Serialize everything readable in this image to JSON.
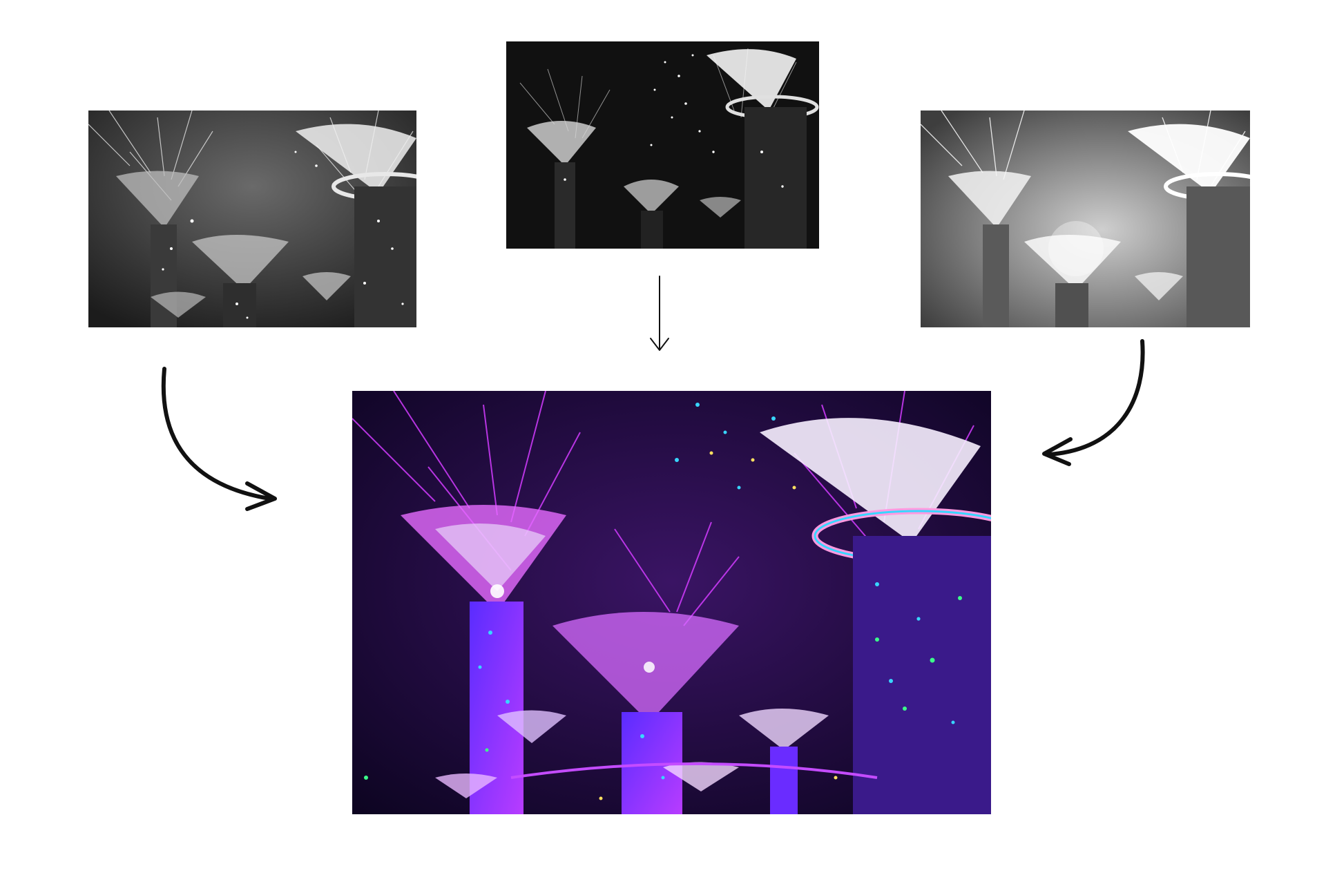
{
  "diagram": {
    "kind": "image-fusion",
    "inputs": [
      {
        "name": "input-left",
        "style": "grayscale",
        "tone": "medium"
      },
      {
        "name": "input-center",
        "style": "grayscale",
        "tone": "dark"
      },
      {
        "name": "input-right",
        "style": "grayscale",
        "tone": "bright"
      }
    ],
    "output": {
      "name": "fused-output",
      "style": "color"
    },
    "colors": {
      "arrow": "#111111",
      "sky_gray": "#2a2a2a",
      "sky_color": "#1a0a3a",
      "magenta": "#d23cff",
      "violet": "#7a2cff",
      "cyan": "#38d6ff",
      "green": "#3cff8a",
      "white": "#ffffff"
    },
    "arrows": [
      {
        "from": "input-left",
        "to": "fused-output",
        "style": "bold-curved"
      },
      {
        "from": "input-center",
        "to": "fused-output",
        "style": "thin-straight"
      },
      {
        "from": "input-right",
        "to": "fused-output",
        "style": "bold-curved"
      }
    ]
  }
}
